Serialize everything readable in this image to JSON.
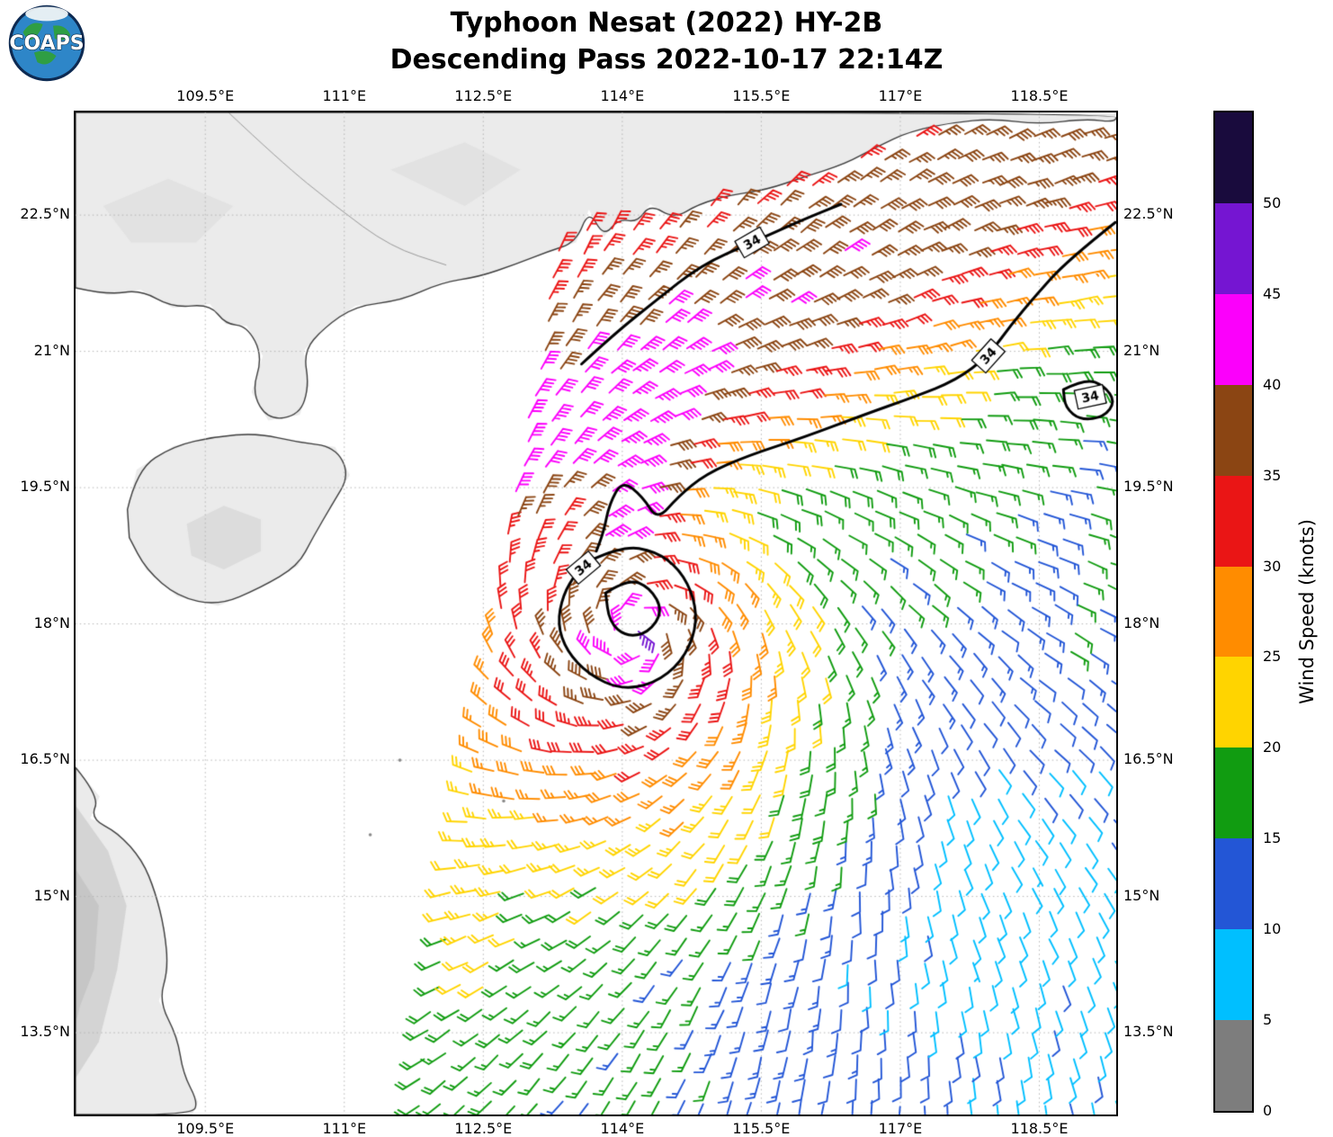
{
  "logo": {
    "text": "COAPS"
  },
  "title": {
    "line1": "Typhoon Nesat (2022) HY-2B",
    "line2": "Descending Pass 2022-10-17 22:14Z"
  },
  "chart_data": {
    "type": "map-windbarbs",
    "title": "Typhoon Nesat (2022) HY-2B — Descending Pass 2022-10-17 22:14Z",
    "lon_range": [
      108.1,
      119.33
    ],
    "lat_range": [
      12.6,
      23.63
    ],
    "lon_ticks": [
      109.5,
      111,
      112.5,
      114,
      115.5,
      117,
      118.5
    ],
    "lon_tick_labels": [
      "109.5°E",
      "111°E",
      "112.5°E",
      "114°E",
      "115.5°E",
      "117°E",
      "118.5°E"
    ],
    "lat_ticks": [
      22.5,
      21,
      19.5,
      18,
      16.5,
      15,
      13.5
    ],
    "lat_tick_labels": [
      "22.5°N",
      "21°N",
      "19.5°N",
      "18°N",
      "16.5°N",
      "15°N",
      "13.5°N"
    ],
    "grid_color": "#b5b5b5",
    "colorbar": {
      "label": "Wind Speed (knots)",
      "min": 0,
      "max": 55,
      "tick_values": [
        0,
        5,
        10,
        15,
        20,
        25,
        30,
        35,
        40,
        45,
        50
      ],
      "bins": [
        {
          "from": 0,
          "to": 5,
          "color": "#7d7d7d"
        },
        {
          "from": 5,
          "to": 10,
          "color": "#00bfff"
        },
        {
          "from": 10,
          "to": 15,
          "color": "#2356d6"
        },
        {
          "from": 15,
          "to": 20,
          "color": "#119c11"
        },
        {
          "from": 20,
          "to": 25,
          "color": "#ffd400"
        },
        {
          "from": 25,
          "to": 30,
          "color": "#ff8c00"
        },
        {
          "from": 30,
          "to": 35,
          "color": "#ea1515"
        },
        {
          "from": 35,
          "to": 40,
          "color": "#8b4513"
        },
        {
          "from": 40,
          "to": 45,
          "color": "#fb00fb"
        },
        {
          "from": 45,
          "to": 50,
          "color": "#7515d2"
        },
        {
          "from": 50,
          "to": 55,
          "color": "#190b3d"
        }
      ]
    },
    "contour_label": "34",
    "contours": [
      {
        "closed": false,
        "points": [
          [
            113.56,
            20.86
          ],
          [
            113.9,
            21.18
          ],
          [
            114.35,
            21.55
          ],
          [
            114.85,
            21.95
          ],
          [
            115.4,
            22.2
          ],
          [
            115.95,
            22.45
          ],
          [
            116.36,
            22.62
          ]
        ]
      },
      {
        "closed": false,
        "points": [
          [
            119.32,
            22.42
          ],
          [
            118.8,
            22.0
          ],
          [
            118.45,
            21.6
          ],
          [
            118.2,
            21.3
          ],
          [
            117.95,
            20.95
          ],
          [
            117.6,
            20.68
          ],
          [
            117.15,
            20.5
          ],
          [
            116.6,
            20.3
          ],
          [
            115.95,
            20.05
          ],
          [
            115.35,
            19.85
          ],
          [
            114.9,
            19.65
          ],
          [
            114.6,
            19.4
          ],
          [
            114.38,
            19.14
          ],
          [
            114.22,
            19.4
          ],
          [
            114.0,
            19.58
          ],
          [
            113.86,
            19.32
          ],
          [
            113.8,
            19.02
          ],
          [
            113.72,
            18.8
          ]
        ]
      },
      {
        "closed": true,
        "points": [
          [
            113.66,
            18.7
          ],
          [
            114.0,
            18.86
          ],
          [
            114.36,
            18.8
          ],
          [
            114.62,
            18.6
          ],
          [
            114.78,
            18.28
          ],
          [
            114.8,
            17.94
          ],
          [
            114.64,
            17.58
          ],
          [
            114.34,
            17.34
          ],
          [
            113.98,
            17.28
          ],
          [
            113.64,
            17.44
          ],
          [
            113.4,
            17.7
          ],
          [
            113.3,
            18.0
          ],
          [
            113.36,
            18.32
          ],
          [
            113.5,
            18.56
          ]
        ]
      },
      {
        "closed": true,
        "points": [
          [
            113.82,
            18.34
          ],
          [
            114.06,
            18.5
          ],
          [
            114.3,
            18.4
          ],
          [
            114.44,
            18.14
          ],
          [
            114.28,
            17.9
          ],
          [
            114.04,
            17.86
          ],
          [
            113.86,
            18.02
          ]
        ]
      },
      {
        "closed": true,
        "points": [
          [
            118.76,
            20.58
          ],
          [
            119.0,
            20.7
          ],
          [
            119.2,
            20.62
          ],
          [
            119.32,
            20.45
          ],
          [
            119.2,
            20.28
          ],
          [
            118.95,
            20.24
          ],
          [
            118.78,
            20.38
          ]
        ]
      }
    ],
    "contour_labels": [
      {
        "pos": [
          115.4,
          22.2
        ],
        "rot": -30
      },
      {
        "pos": [
          117.95,
          20.95
        ],
        "rot": -48
      },
      {
        "pos": [
          119.05,
          20.5
        ],
        "rot": -12
      },
      {
        "pos": [
          113.58,
          18.62
        ],
        "rot": -40
      }
    ],
    "coast": {
      "fill": "#ebebeb",
      "stroke": "#3d3d3d",
      "china": [
        [
          108.1,
          21.7
        ],
        [
          108.45,
          21.62
        ],
        [
          108.8,
          21.68
        ],
        [
          109.15,
          21.48
        ],
        [
          109.55,
          21.52
        ],
        [
          109.72,
          21.3
        ],
        [
          109.95,
          21.28
        ],
        [
          110.12,
          20.95
        ],
        [
          110.0,
          20.55
        ],
        [
          110.18,
          20.24
        ],
        [
          110.52,
          20.3
        ],
        [
          110.62,
          20.62
        ],
        [
          110.56,
          21.0
        ],
        [
          110.78,
          21.26
        ],
        [
          111.12,
          21.5
        ],
        [
          111.62,
          21.56
        ],
        [
          112.05,
          21.76
        ],
        [
          112.45,
          21.82
        ],
        [
          112.85,
          21.96
        ],
        [
          113.2,
          22.1
        ],
        [
          113.5,
          22.2
        ],
        [
          113.64,
          22.56
        ],
        [
          113.8,
          22.26
        ],
        [
          113.96,
          22.46
        ],
        [
          114.16,
          22.42
        ],
        [
          114.3,
          22.62
        ],
        [
          114.56,
          22.46
        ],
        [
          114.82,
          22.62
        ],
        [
          115.16,
          22.72
        ],
        [
          115.56,
          22.78
        ],
        [
          115.96,
          22.92
        ],
        [
          116.4,
          23.06
        ],
        [
          116.76,
          23.26
        ],
        [
          117.1,
          23.42
        ],
        [
          117.56,
          23.52
        ],
        [
          118.0,
          23.56
        ],
        [
          118.5,
          23.5
        ],
        [
          119.0,
          23.56
        ],
        [
          119.33,
          23.52
        ],
        [
          119.33,
          23.63
        ],
        [
          108.1,
          23.63
        ]
      ],
      "hainan": [
        [
          108.66,
          19.26
        ],
        [
          108.76,
          19.7
        ],
        [
          109.16,
          19.96
        ],
        [
          109.6,
          20.06
        ],
        [
          110.06,
          20.1
        ],
        [
          110.5,
          20.0
        ],
        [
          110.9,
          19.95
        ],
        [
          111.06,
          19.64
        ],
        [
          110.86,
          19.3
        ],
        [
          110.66,
          18.95
        ],
        [
          110.5,
          18.64
        ],
        [
          110.1,
          18.4
        ],
        [
          109.64,
          18.2
        ],
        [
          109.2,
          18.3
        ],
        [
          108.86,
          18.6
        ],
        [
          108.68,
          18.95
        ]
      ],
      "vietnam": [
        [
          108.1,
          16.42
        ],
        [
          108.36,
          16.1
        ],
        [
          108.26,
          15.86
        ],
        [
          108.56,
          15.7
        ],
        [
          108.82,
          15.4
        ],
        [
          108.96,
          15.05
        ],
        [
          109.06,
          14.64
        ],
        [
          109.1,
          14.2
        ],
        [
          109.0,
          13.85
        ],
        [
          109.2,
          13.45
        ],
        [
          109.26,
          13.05
        ],
        [
          109.42,
          12.74
        ],
        [
          109.36,
          12.6
        ],
        [
          108.1,
          12.6
        ]
      ],
      "islands": [
        [
          111.6,
          16.5
        ],
        [
          111.28,
          15.68
        ],
        [
          112.72,
          16.05
        ]
      ],
      "inner_border": [
        [
          109.75,
          23.63
        ],
        [
          110.3,
          23.1
        ],
        [
          110.9,
          22.6
        ],
        [
          111.5,
          22.15
        ],
        [
          112.1,
          21.95
        ]
      ],
      "terrain_patches": [
        {
          "color": "#d4d4d4",
          "points": [
            [
              108.1,
              16.0
            ],
            [
              108.45,
              15.5
            ],
            [
              108.65,
              14.9
            ],
            [
              108.55,
              14.2
            ],
            [
              108.35,
              13.4
            ],
            [
              108.1,
              13.0
            ]
          ]
        },
        {
          "color": "#c6c6c6",
          "points": [
            [
              108.1,
              15.3
            ],
            [
              108.35,
              14.9
            ],
            [
              108.3,
              14.2
            ],
            [
              108.15,
              13.8
            ],
            [
              108.1,
              13.6
            ]
          ]
        },
        {
          "color": "#dcdcdc",
          "points": [
            [
              109.3,
              19.1
            ],
            [
              109.7,
              19.3
            ],
            [
              110.1,
              19.15
            ],
            [
              110.1,
              18.8
            ],
            [
              109.7,
              18.6
            ],
            [
              109.35,
              18.75
            ]
          ]
        },
        {
          "color": "#e2e2e2",
          "points": [
            [
              108.4,
              22.6
            ],
            [
              109.1,
              22.9
            ],
            [
              109.8,
              22.6
            ],
            [
              109.4,
              22.2
            ],
            [
              108.7,
              22.2
            ]
          ]
        },
        {
          "color": "#e2e2e2",
          "points": [
            [
              111.5,
              23.0
            ],
            [
              112.3,
              23.3
            ],
            [
              112.9,
              23.0
            ],
            [
              112.3,
              22.6
            ]
          ]
        }
      ]
    },
    "wind_model": {
      "center": [
        114.15,
        17.9
      ],
      "v0": 46,
      "scale": 2.8,
      "scale_anis": 0.3,
      "scale_az0": 230,
      "expo": 1.05,
      "edge_line": [
        [
          113.6,
          19.2
        ],
        [
          119.33,
          22.2
        ]
      ],
      "edge_w0": 0.28,
      "edge_wg": 0.1,
      "ridge": [
        [
          114.0,
          20.4
        ],
        [
          119.33,
          23.0
        ]
      ],
      "ridge_base": 33,
      "ridge_amp": 10,
      "ridge_w": 1.2,
      "north_taper": [
        1.2,
        1.5,
        3
      ],
      "column": {
        "a": [
          113.9,
          18.9
        ],
        "b": [
          114.3,
          20.9
        ],
        "amp": 44,
        "w": 0.85
      },
      "left_band": {
        "amp0": 28,
        "slope": 1.6,
        "fade_lat": 14.5,
        "fade_slope": 3,
        "w": 1.1,
        "off": 0.4
      },
      "right_patch": {
        "a": [
          118.9,
          17.9
        ],
        "b": [
          119.33,
          19.2
        ],
        "amp": 16.5,
        "w": 0.7
      },
      "bg": {
        "base": 16.5,
        "lon_slope": 1.1,
        "lat_slope": 0.5,
        "min": 5.5,
        "max": 19,
        "sink_c": [
          117.3,
          15.3
        ],
        "sink_amp": 6,
        "sink_w": 1.6
      },
      "inflow": {
        "base": 18,
        "grow": 42,
        "r0": 1.2,
        "rspan": 3.5
      },
      "cap": 47,
      "swath_left": {
        "lon0": 111.7,
        "lat0": 12.6,
        "slope": 0.1636
      },
      "grid_step": 0.26
    }
  }
}
